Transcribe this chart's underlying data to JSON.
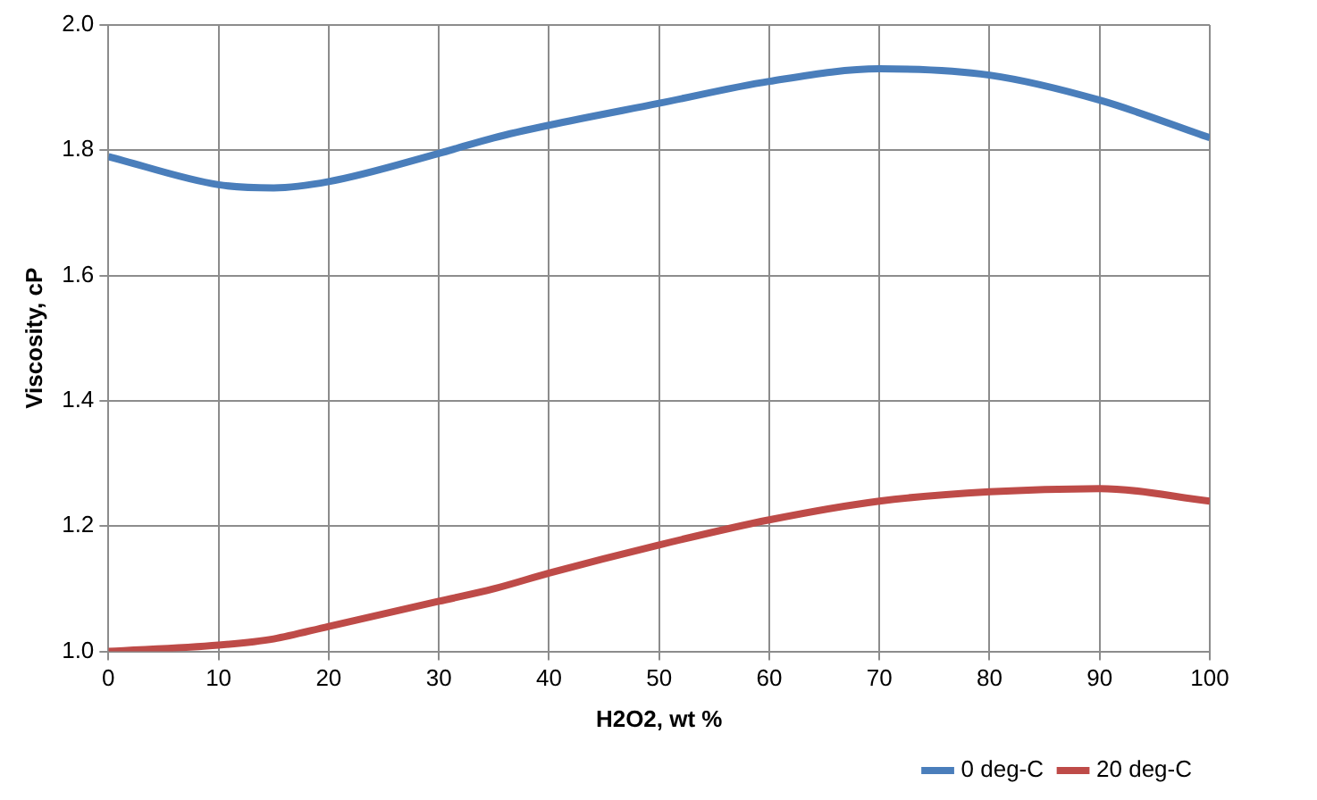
{
  "chart_data": {
    "type": "line",
    "xlabel": "H2O2, wt %",
    "ylabel": "Viscosity, cP",
    "x": [
      0,
      10,
      15,
      20,
      30,
      35,
      40,
      50,
      60,
      70,
      80,
      90,
      100
    ],
    "series": [
      {
        "name": "0 deg-C",
        "color": "#4a7ebb",
        "values": [
          1.79,
          1.745,
          1.74,
          1.75,
          1.795,
          1.82,
          1.84,
          1.875,
          1.91,
          1.93,
          1.92,
          1.88,
          1.82
        ]
      },
      {
        "name": "20 deg-C",
        "color": "#be4b48",
        "values": [
          1.0,
          1.01,
          1.02,
          1.04,
          1.08,
          1.1,
          1.125,
          1.17,
          1.21,
          1.24,
          1.255,
          1.26,
          1.24
        ]
      }
    ],
    "xlim": [
      0,
      100
    ],
    "xticks": [
      0,
      10,
      20,
      30,
      40,
      50,
      60,
      70,
      80,
      90,
      100
    ],
    "ylim": [
      1.0,
      2.0
    ],
    "yticks": [
      {
        "value": 1,
        "label": "1.0"
      },
      {
        "value": 1.2,
        "label": "1.2"
      },
      {
        "value": 1.4,
        "label": "1.4"
      },
      {
        "value": 1.6,
        "label": "1.6"
      },
      {
        "value": 1.8,
        "label": "1.8"
      },
      {
        "value": 2,
        "label": "2.0"
      }
    ],
    "grid": true,
    "legend": "bottom right",
    "marker": "none",
    "line_style": "solid"
  }
}
